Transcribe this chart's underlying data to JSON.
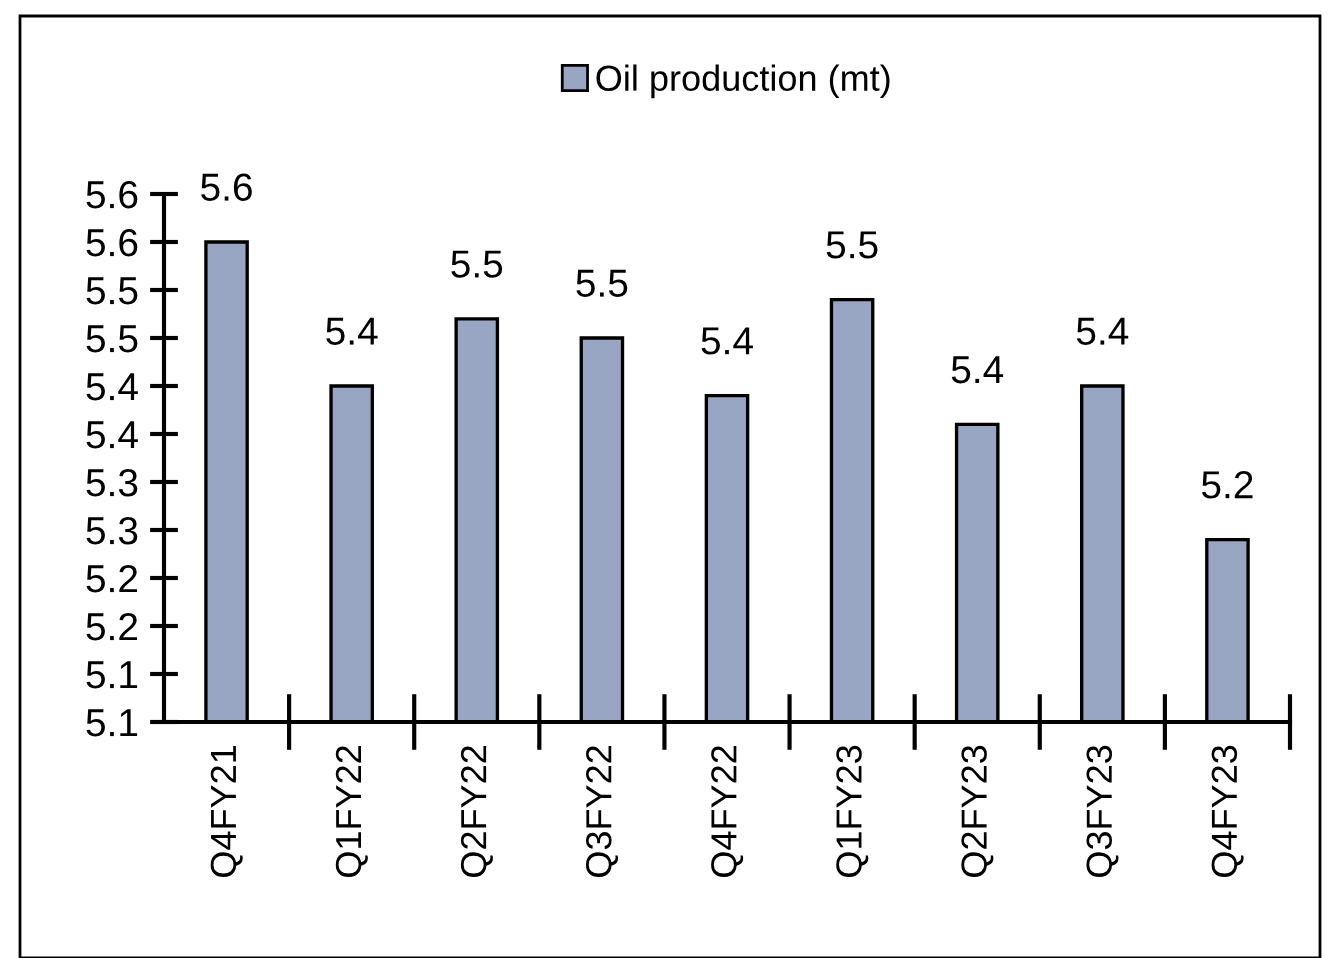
{
  "chart_data": {
    "type": "bar",
    "categories": [
      "Q4FY21",
      "Q1FY22",
      "Q2FY22",
      "Q3FY22",
      "Q4FY22",
      "Q1FY23",
      "Q2FY23",
      "Q3FY23",
      "Q4FY23"
    ],
    "series": [
      {
        "name": "Oil production (mt)",
        "color": "#98a6c4",
        "values": [
          5.55,
          5.4,
          5.47,
          5.45,
          5.39,
          5.49,
          5.36,
          5.4,
          5.24
        ],
        "value_labels": [
          "5.6",
          "5.4",
          "5.5",
          "5.5",
          "5.4",
          "5.5",
          "5.4",
          "5.4",
          "5.2"
        ]
      }
    ],
    "ylim": [
      5.05,
      5.6
    ],
    "yticks": [
      {
        "value": 5.05,
        "label": "5.1"
      },
      {
        "value": 5.1,
        "label": "5.1"
      },
      {
        "value": 5.15,
        "label": "5.2"
      },
      {
        "value": 5.2,
        "label": "5.2"
      },
      {
        "value": 5.25,
        "label": "5.3"
      },
      {
        "value": 5.3,
        "label": "5.3"
      },
      {
        "value": 5.35,
        "label": "5.4"
      },
      {
        "value": 5.4,
        "label": "5.4"
      },
      {
        "value": 5.45,
        "label": "5.5"
      },
      {
        "value": 5.5,
        "label": "5.5"
      },
      {
        "value": 5.55,
        "label": "5.6"
      },
      {
        "value": 5.6,
        "label": "5.6"
      }
    ],
    "grid": false,
    "legend": "top"
  }
}
